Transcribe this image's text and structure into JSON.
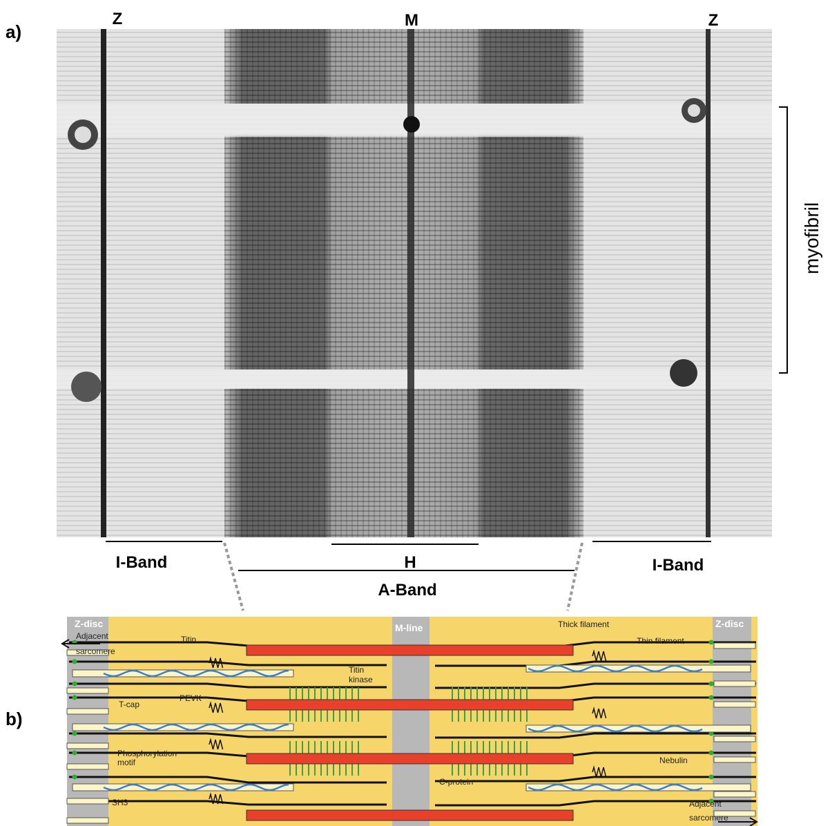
{
  "panel_a": {
    "label": "a)",
    "z_left": "Z",
    "m_line": "M",
    "z_right": "Z",
    "myofibril": "myofibril",
    "i_band_left": "I-Band",
    "h_zone": "H",
    "i_band_right": "I-Band",
    "a_band": "A-Band"
  },
  "panel_b": {
    "label": "b)",
    "z_disc_left": "Z-disc",
    "adjacent_left": [
      "Adjacent",
      "sarcomere"
    ],
    "titin": "Titin",
    "m_line": "M-line",
    "thick_filament": "Thick filament",
    "thin_filament": "Thin filament",
    "z_disc_right": "Z-disc",
    "titin_kinase": [
      "Titin",
      "kinase"
    ],
    "pevk": "PEVK",
    "t_cap": "T-cap",
    "phosphorylation": [
      "Phosphorylation",
      "motif"
    ],
    "c_protein": "C-protein",
    "nebulin": "Nebulin",
    "sh3": "SH3",
    "adjacent_right": [
      "Adjacent",
      "sarcomere"
    ]
  }
}
